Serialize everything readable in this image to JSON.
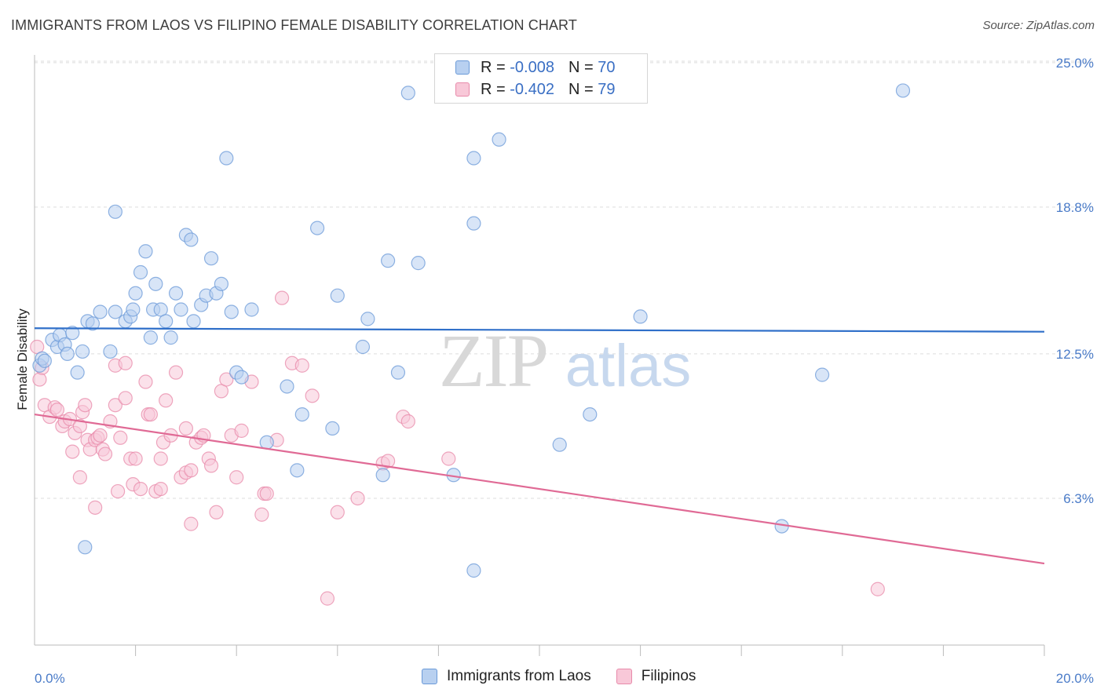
{
  "title": "IMMIGRANTS FROM LAOS VS FILIPINO FEMALE DISABILITY CORRELATION CHART",
  "source": "Source: ZipAtlas.com",
  "watermark": {
    "zip": "ZIP",
    "atlas": "atlas"
  },
  "legend": {
    "r_label": "R =",
    "n_label": "N =",
    "rows": [
      {
        "name": "Immigrants from Laos",
        "r": "-0.008",
        "n": "70",
        "color": "#6b9ad8"
      },
      {
        "name": "Filipinos",
        "r": "-0.402",
        "n": "79",
        "color": "#e88aaa"
      }
    ]
  },
  "chart_data": {
    "type": "scatter",
    "title": "IMMIGRANTS FROM LAOS VS FILIPINO FEMALE DISABILITY CORRELATION CHART",
    "xlabel": "",
    "ylabel": "Female Disability",
    "xlim": [
      0,
      20
    ],
    "ylim": [
      0,
      25.6
    ],
    "x_tick_labels": [
      "0.0%",
      "20.0%"
    ],
    "y_ticks": [
      25.0,
      18.8,
      12.5,
      6.3
    ],
    "y_tick_labels": [
      "25.0%",
      "18.8%",
      "12.5%",
      "6.3%"
    ],
    "series": [
      {
        "name": "Immigrants from Laos",
        "color": "#6b9ad8",
        "fill": "#b8d0f0",
        "trend": {
          "x": [
            0,
            20
          ],
          "y": [
            13.6,
            13.45
          ]
        },
        "points": [
          [
            0.1,
            12.0
          ],
          [
            0.15,
            12.3
          ],
          [
            0.2,
            12.2
          ],
          [
            0.35,
            13.1
          ],
          [
            0.45,
            12.8
          ],
          [
            0.5,
            13.3
          ],
          [
            0.6,
            12.9
          ],
          [
            0.65,
            12.5
          ],
          [
            0.75,
            13.4
          ],
          [
            0.85,
            11.7
          ],
          [
            0.95,
            12.6
          ],
          [
            1.05,
            13.9
          ],
          [
            1.15,
            13.8
          ],
          [
            1.3,
            14.3
          ],
          [
            1.5,
            12.6
          ],
          [
            1.6,
            18.6
          ],
          [
            1.6,
            14.3
          ],
          [
            1.8,
            13.9
          ],
          [
            1.9,
            14.1
          ],
          [
            1.95,
            14.4
          ],
          [
            2.0,
            15.1
          ],
          [
            2.1,
            16.0
          ],
          [
            2.2,
            16.9
          ],
          [
            2.3,
            13.2
          ],
          [
            2.35,
            14.4
          ],
          [
            2.4,
            15.5
          ],
          [
            2.5,
            14.4
          ],
          [
            2.6,
            13.9
          ],
          [
            2.7,
            13.2
          ],
          [
            2.8,
            15.1
          ],
          [
            2.9,
            14.4
          ],
          [
            3.0,
            17.6
          ],
          [
            3.1,
            17.4
          ],
          [
            3.15,
            13.9
          ],
          [
            3.3,
            14.6
          ],
          [
            3.4,
            15.0
          ],
          [
            3.5,
            16.6
          ],
          [
            3.6,
            15.1
          ],
          [
            3.7,
            15.5
          ],
          [
            3.8,
            20.9
          ],
          [
            3.9,
            14.3
          ],
          [
            4.0,
            11.7
          ],
          [
            4.1,
            11.5
          ],
          [
            4.3,
            14.4
          ],
          [
            4.6,
            8.7
          ],
          [
            5.0,
            11.1
          ],
          [
            5.2,
            7.5
          ],
          [
            5.3,
            9.9
          ],
          [
            5.6,
            17.9
          ],
          [
            5.9,
            9.3
          ],
          [
            6.0,
            15.0
          ],
          [
            6.5,
            12.8
          ],
          [
            6.6,
            14.0
          ],
          [
            6.9,
            7.3
          ],
          [
            7.0,
            16.5
          ],
          [
            7.2,
            11.7
          ],
          [
            7.4,
            23.7
          ],
          [
            7.6,
            16.4
          ],
          [
            8.3,
            7.3
          ],
          [
            8.7,
            3.2
          ],
          [
            8.7,
            18.1
          ],
          [
            8.7,
            20.9
          ],
          [
            9.2,
            21.7
          ],
          [
            10.4,
            8.6
          ],
          [
            11.0,
            9.9
          ],
          [
            12.0,
            14.1
          ],
          [
            14.8,
            5.1
          ],
          [
            15.6,
            11.6
          ],
          [
            17.2,
            23.8
          ],
          [
            1.0,
            4.2
          ]
        ]
      },
      {
        "name": "Filipinos",
        "color": "#e88aaa",
        "fill": "#f8c8d8",
        "trend": {
          "x": [
            0,
            20
          ],
          "y": [
            9.9,
            3.5
          ]
        },
        "points": [
          [
            0.05,
            12.8
          ],
          [
            0.1,
            11.4
          ],
          [
            0.15,
            11.9
          ],
          [
            0.2,
            10.3
          ],
          [
            0.3,
            9.8
          ],
          [
            0.4,
            10.2
          ],
          [
            0.45,
            10.1
          ],
          [
            0.55,
            9.4
          ],
          [
            0.6,
            9.6
          ],
          [
            0.7,
            9.7
          ],
          [
            0.75,
            8.3
          ],
          [
            0.8,
            9.1
          ],
          [
            0.9,
            9.4
          ],
          [
            0.95,
            10.0
          ],
          [
            1.0,
            10.3
          ],
          [
            1.05,
            8.8
          ],
          [
            1.1,
            8.4
          ],
          [
            1.2,
            8.8
          ],
          [
            1.25,
            8.9
          ],
          [
            1.3,
            9.0
          ],
          [
            1.35,
            8.4
          ],
          [
            1.4,
            8.2
          ],
          [
            1.5,
            9.6
          ],
          [
            1.6,
            10.3
          ],
          [
            1.6,
            12.0
          ],
          [
            1.65,
            6.6
          ],
          [
            1.7,
            8.9
          ],
          [
            1.8,
            12.1
          ],
          [
            1.9,
            8.0
          ],
          [
            1.95,
            6.9
          ],
          [
            2.0,
            8.0
          ],
          [
            2.1,
            6.7
          ],
          [
            2.2,
            11.3
          ],
          [
            2.25,
            9.9
          ],
          [
            2.3,
            9.9
          ],
          [
            2.4,
            6.6
          ],
          [
            2.5,
            8.0
          ],
          [
            2.55,
            8.7
          ],
          [
            2.6,
            10.5
          ],
          [
            2.7,
            9.0
          ],
          [
            2.8,
            11.7
          ],
          [
            2.9,
            7.2
          ],
          [
            3.0,
            7.4
          ],
          [
            3.1,
            7.5
          ],
          [
            3.1,
            5.2
          ],
          [
            3.2,
            8.7
          ],
          [
            3.3,
            8.9
          ],
          [
            3.35,
            9.0
          ],
          [
            3.45,
            8.0
          ],
          [
            3.5,
            7.7
          ],
          [
            3.6,
            5.7
          ],
          [
            3.7,
            10.9
          ],
          [
            3.8,
            11.4
          ],
          [
            3.9,
            9.0
          ],
          [
            4.0,
            7.2
          ],
          [
            4.1,
            9.2
          ],
          [
            4.3,
            11.3
          ],
          [
            4.5,
            5.6
          ],
          [
            4.55,
            6.5
          ],
          [
            4.6,
            6.5
          ],
          [
            4.8,
            8.8
          ],
          [
            4.9,
            14.9
          ],
          [
            5.1,
            12.1
          ],
          [
            5.3,
            12.0
          ],
          [
            5.5,
            10.7
          ],
          [
            5.8,
            2.0
          ],
          [
            6.0,
            5.7
          ],
          [
            6.4,
            6.3
          ],
          [
            6.9,
            7.8
          ],
          [
            7.0,
            7.9
          ],
          [
            7.3,
            9.8
          ],
          [
            7.4,
            9.6
          ],
          [
            8.2,
            8.0
          ],
          [
            16.7,
            2.4
          ],
          [
            2.5,
            6.7
          ],
          [
            1.2,
            5.9
          ],
          [
            0.9,
            7.2
          ],
          [
            3.0,
            9.3
          ],
          [
            1.8,
            10.6
          ]
        ]
      }
    ]
  },
  "bottom_legend": [
    "Immigrants from Laos",
    "Filipinos"
  ]
}
